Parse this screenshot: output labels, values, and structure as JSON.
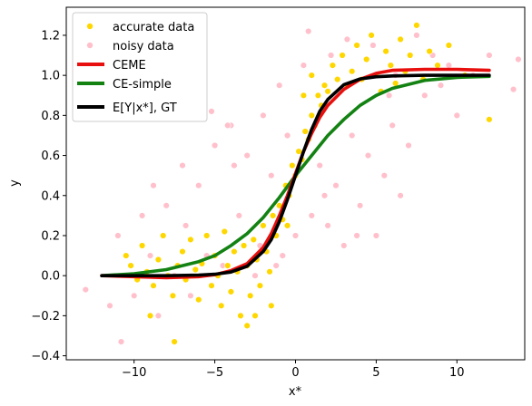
{
  "chart_data": {
    "type": "scatter",
    "xlabel": "x*",
    "ylabel": "y",
    "xlim": [
      -14.2,
      14.2
    ],
    "ylim": [
      -0.42,
      1.34
    ],
    "x_ticks": [
      -10,
      -5,
      0,
      5,
      10
    ],
    "y_ticks": [
      -0.4,
      -0.2,
      0.0,
      0.2,
      0.4,
      0.6,
      0.8,
      1.0,
      1.2
    ],
    "x_tick_labels": [
      "−10",
      "−5",
      "0",
      "5",
      "10"
    ],
    "y_tick_labels": [
      "−0.4",
      "−0.2",
      "0.0",
      "0.2",
      "0.4",
      "0.6",
      "0.8",
      "1.0",
      "1.2"
    ],
    "grid": false,
    "legend_position": "top-left",
    "legend": [
      {
        "label": "accurate data",
        "kind": "marker",
        "color": "#FFD700"
      },
      {
        "label": "noisy data",
        "kind": "marker",
        "color": "#FFC0CB"
      },
      {
        "label": "CEME",
        "kind": "line",
        "color": "#E8100E"
      },
      {
        "label": "CE-simple",
        "kind": "line",
        "color": "#138213"
      },
      {
        "label": "E[Y|x*], GT",
        "kind": "line",
        "color": "#000000"
      }
    ],
    "series": [
      {
        "name": "CEME",
        "kind": "line",
        "color": "#E8100E",
        "x": [
          -12,
          -10,
          -8,
          -6,
          -5,
          -4,
          -3,
          -2,
          -1.5,
          -1,
          -0.5,
          0,
          0.5,
          1,
          1.5,
          2,
          3,
          4,
          5,
          6,
          8,
          10,
          12
        ],
        "y": [
          0.0,
          -0.005,
          -0.01,
          -0.005,
          0.005,
          0.025,
          0.06,
          0.14,
          0.21,
          0.3,
          0.4,
          0.51,
          0.62,
          0.71,
          0.79,
          0.85,
          0.93,
          0.98,
          1.01,
          1.025,
          1.03,
          1.03,
          1.025
        ]
      },
      {
        "name": "CE-simple",
        "kind": "line",
        "color": "#138213",
        "x": [
          -12,
          -10,
          -8,
          -6,
          -5,
          -4,
          -3,
          -2,
          -1,
          0,
          1,
          2,
          3,
          4,
          5,
          6,
          8,
          10,
          12
        ],
        "y": [
          0.0,
          0.01,
          0.03,
          0.07,
          0.1,
          0.15,
          0.21,
          0.29,
          0.39,
          0.5,
          0.6,
          0.7,
          0.78,
          0.85,
          0.9,
          0.935,
          0.975,
          0.99,
          0.995
        ]
      },
      {
        "name": "E[Y|x*], GT",
        "kind": "line",
        "color": "#000000",
        "x": [
          -12,
          -10,
          -8,
          -6,
          -5,
          -4,
          -3,
          -2,
          -1.5,
          -1,
          -0.5,
          0,
          0.5,
          1,
          1.5,
          2,
          3,
          4,
          5,
          6,
          8,
          10,
          12
        ],
        "y": [
          0.0,
          0.0,
          0.0,
          0.003,
          0.007,
          0.018,
          0.047,
          0.12,
          0.18,
          0.27,
          0.38,
          0.5,
          0.62,
          0.73,
          0.82,
          0.88,
          0.953,
          0.982,
          0.993,
          0.997,
          1.0,
          1.0,
          1.0
        ]
      },
      {
        "name": "accurate data",
        "kind": "scatter",
        "color": "#FFD700",
        "points": [
          [
            -10.5,
            0.1
          ],
          [
            -10.2,
            0.05
          ],
          [
            -9.8,
            -0.02
          ],
          [
            -9.5,
            0.15
          ],
          [
            -9.2,
            0.02
          ],
          [
            -8.8,
            -0.05
          ],
          [
            -8.5,
            0.08
          ],
          [
            -8.2,
            0.2
          ],
          [
            -7.9,
            0.0
          ],
          [
            -7.6,
            -0.1
          ],
          [
            -7.3,
            0.05
          ],
          [
            -7.0,
            0.12
          ],
          [
            -6.8,
            -0.02
          ],
          [
            -6.5,
            0.18
          ],
          [
            -6.2,
            0.03
          ],
          [
            -6.0,
            -0.12
          ],
          [
            -5.8,
            0.06
          ],
          [
            -5.5,
            0.2
          ],
          [
            -5.2,
            -0.05
          ],
          [
            -5.0,
            0.1
          ],
          [
            -4.8,
            0.0
          ],
          [
            -4.6,
            -0.15
          ],
          [
            -4.4,
            0.22
          ],
          [
            -4.2,
            0.05
          ],
          [
            -4.0,
            -0.08
          ],
          [
            -3.8,
            0.12
          ],
          [
            -3.6,
            0.02
          ],
          [
            -3.4,
            -0.2
          ],
          [
            -3.2,
            0.15
          ],
          [
            -3.0,
            0.05
          ],
          [
            -2.8,
            -0.1
          ],
          [
            -2.6,
            0.18
          ],
          [
            -2.4,
            0.08
          ],
          [
            -2.2,
            -0.05
          ],
          [
            -2.0,
            0.25
          ],
          [
            -1.8,
            0.12
          ],
          [
            -1.6,
            0.02
          ],
          [
            -1.4,
            0.3
          ],
          [
            -1.2,
            0.2
          ],
          [
            -1.0,
            0.35
          ],
          [
            -0.8,
            0.28
          ],
          [
            -0.6,
            0.45
          ],
          [
            -0.4,
            0.4
          ],
          [
            -0.2,
            0.55
          ],
          [
            0.0,
            0.5
          ],
          [
            0.2,
            0.62
          ],
          [
            0.4,
            0.58
          ],
          [
            0.6,
            0.72
          ],
          [
            0.8,
            0.68
          ],
          [
            1.0,
            0.8
          ],
          [
            1.2,
            0.75
          ],
          [
            1.4,
            0.9
          ],
          [
            1.6,
            0.85
          ],
          [
            1.8,
            0.95
          ],
          [
            2.0,
            0.92
          ],
          [
            2.3,
            1.05
          ],
          [
            2.6,
            0.98
          ],
          [
            2.9,
            1.1
          ],
          [
            3.2,
            0.95
          ],
          [
            3.5,
            1.02
          ],
          [
            3.8,
            1.15
          ],
          [
            4.1,
            0.98
          ],
          [
            4.4,
            1.08
          ],
          [
            4.7,
            1.2
          ],
          [
            5.0,
            1.0
          ],
          [
            5.3,
            0.92
          ],
          [
            5.6,
            1.12
          ],
          [
            5.9,
            1.05
          ],
          [
            6.2,
            0.96
          ],
          [
            6.5,
            1.18
          ],
          [
            6.8,
            1.02
          ],
          [
            7.1,
            1.1
          ],
          [
            7.5,
            1.25
          ],
          [
            7.9,
            0.98
          ],
          [
            8.3,
            1.12
          ],
          [
            8.8,
            1.05
          ],
          [
            9.5,
            1.15
          ],
          [
            10.5,
            1.0
          ],
          [
            12.0,
            0.78
          ],
          [
            -3.0,
            -0.25
          ],
          [
            -2.5,
            -0.2
          ],
          [
            -1.5,
            -0.15
          ],
          [
            -7.5,
            -0.33
          ],
          [
            -9.0,
            -0.2
          ],
          [
            1.0,
            1.0
          ],
          [
            0.5,
            0.9
          ],
          [
            -0.5,
            0.25
          ]
        ]
      },
      {
        "name": "noisy data",
        "kind": "scatter",
        "color": "#FFC0CB",
        "points": [
          [
            -13.0,
            -0.07
          ],
          [
            -11.5,
            -0.15
          ],
          [
            -11.0,
            0.2
          ],
          [
            -10.8,
            -0.33
          ],
          [
            -10.0,
            -0.1
          ],
          [
            -9.5,
            0.3
          ],
          [
            -9.0,
            0.1
          ],
          [
            -8.5,
            -0.2
          ],
          [
            -8.0,
            0.35
          ],
          [
            -7.5,
            0.0
          ],
          [
            -7.0,
            0.55
          ],
          [
            -6.5,
            -0.1
          ],
          [
            -6.0,
            0.45
          ],
          [
            -5.5,
            0.1
          ],
          [
            -5.0,
            0.65
          ],
          [
            -4.5,
            0.05
          ],
          [
            -4.0,
            0.75
          ],
          [
            -3.5,
            0.3
          ],
          [
            -3.0,
            0.6
          ],
          [
            -2.5,
            0.0
          ],
          [
            -2.0,
            0.8
          ],
          [
            -1.5,
            0.5
          ],
          [
            -1.0,
            0.95
          ],
          [
            -0.5,
            0.7
          ],
          [
            0.0,
            0.2
          ],
          [
            0.5,
            1.05
          ],
          [
            1.0,
            0.3
          ],
          [
            1.5,
            0.55
          ],
          [
            2.0,
            0.25
          ],
          [
            2.5,
            0.45
          ],
          [
            3.0,
            0.15
          ],
          [
            3.5,
            0.7
          ],
          [
            4.0,
            0.35
          ],
          [
            4.5,
            0.6
          ],
          [
            5.0,
            0.2
          ],
          [
            5.5,
            0.5
          ],
          [
            6.0,
            0.75
          ],
          [
            6.5,
            0.4
          ],
          [
            7.0,
            0.65
          ],
          [
            7.5,
            1.2
          ],
          [
            8.0,
            0.9
          ],
          [
            8.5,
            1.1
          ],
          [
            9.0,
            0.95
          ],
          [
            9.5,
            1.05
          ],
          [
            10.0,
            0.8
          ],
          [
            11.0,
            1.0
          ],
          [
            12.0,
            1.1
          ],
          [
            13.5,
            0.93
          ],
          [
            13.8,
            1.08
          ],
          [
            -4.2,
            0.75
          ],
          [
            -3.8,
            0.55
          ],
          [
            -1.2,
            0.05
          ],
          [
            0.8,
            1.22
          ],
          [
            1.8,
            0.4
          ],
          [
            3.2,
            1.18
          ],
          [
            4.8,
            1.15
          ],
          [
            5.8,
            0.9
          ],
          [
            6.2,
            1.0
          ],
          [
            -2.2,
            0.15
          ],
          [
            -0.8,
            0.1
          ],
          [
            2.2,
            1.1
          ],
          [
            3.8,
            0.2
          ],
          [
            -6.8,
            0.25
          ],
          [
            -8.8,
            0.45
          ],
          [
            -5.2,
            0.82
          ]
        ]
      }
    ]
  }
}
